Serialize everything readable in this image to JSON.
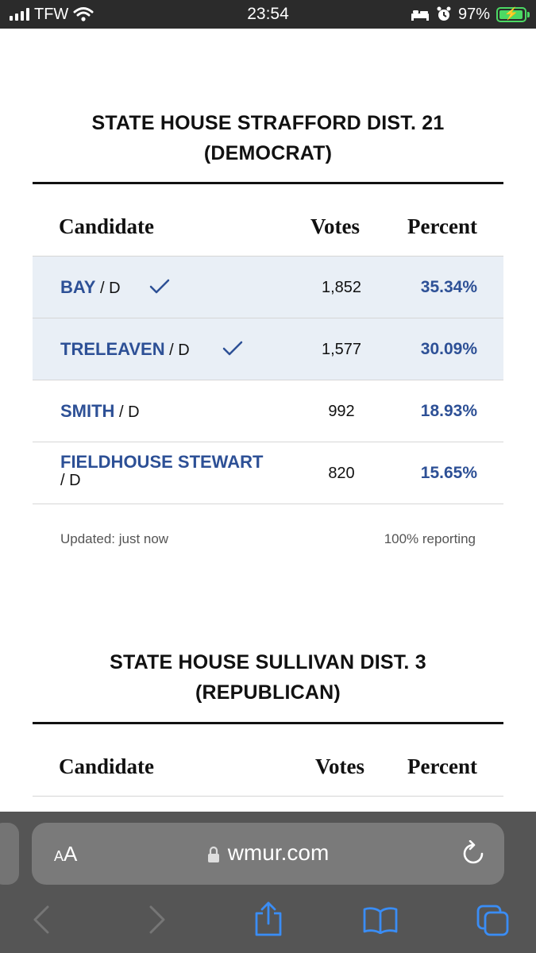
{
  "status_bar": {
    "carrier": "TFW",
    "time": "23:54",
    "battery": "97%",
    "battery_level": 0.97,
    "icons": [
      "signal-icon",
      "wifi-icon",
      "bed-icon",
      "alarm-icon",
      "battery-charging-icon"
    ]
  },
  "races": [
    {
      "title_line1": "STATE HOUSE STRAFFORD DIST. 21",
      "title_line2": "(DEMOCRAT)",
      "headers": {
        "candidate": "Candidate",
        "votes": "Votes",
        "percent": "Percent"
      },
      "candidates": [
        {
          "name": "BAY",
          "party": " / D",
          "votes": "1,852",
          "percent": "35.34%",
          "winner": true
        },
        {
          "name": "TRELEAVEN",
          "party": " / D",
          "votes": "1,577",
          "percent": "30.09%",
          "winner": true
        },
        {
          "name": "SMITH",
          "party": " / D",
          "votes": "992",
          "percent": "18.93%",
          "winner": false
        },
        {
          "name": "FIELDHOUSE STEWART",
          "party": " / D",
          "votes": "820",
          "percent": "15.65%",
          "winner": false
        }
      ],
      "updated": "Updated: just now",
      "reporting": "100% reporting"
    },
    {
      "title_line1": "STATE HOUSE SULLIVAN DIST. 3",
      "title_line2": "(REPUBLICAN)",
      "headers": {
        "candidate": "Candidate",
        "votes": "Votes",
        "percent": "Percent"
      }
    }
  ],
  "browser": {
    "text_size_small": "A",
    "text_size_large": "A",
    "url": "wmur.com",
    "icons": [
      "lock-icon",
      "reload-icon",
      "back-icon",
      "forward-icon",
      "share-icon",
      "bookmarks-icon",
      "tabs-icon"
    ]
  },
  "colors": {
    "link_blue": "#2d5096",
    "winner_row": "#e9eff6",
    "status_bar": "#2b2b2b",
    "browser_bar": "#555555",
    "battery_green": "#4cd964"
  }
}
